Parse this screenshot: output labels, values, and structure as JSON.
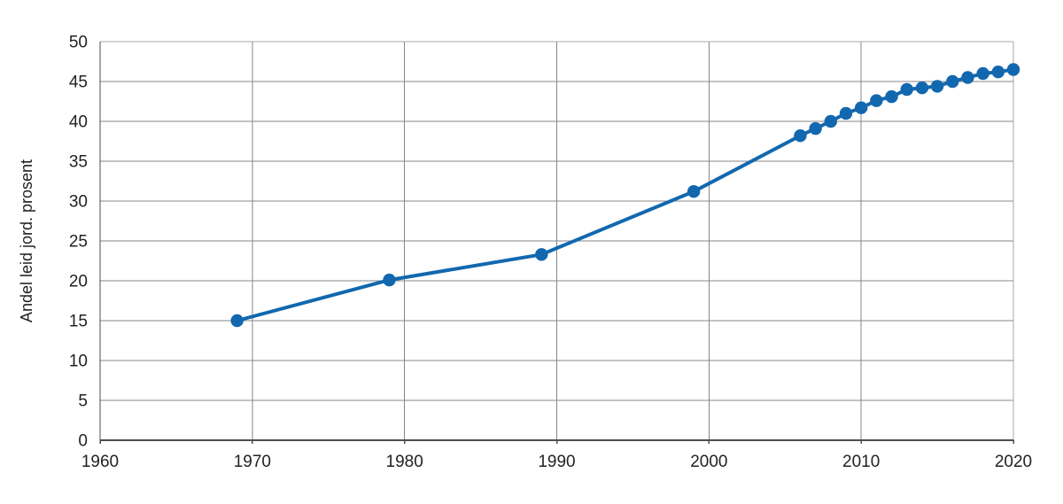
{
  "page": {
    "background": "#ffffff"
  },
  "chart_data": {
    "type": "line",
    "title": "",
    "xlabel": "",
    "ylabel": "Andel leid jord. prosent",
    "series": [
      {
        "name": "Andel leid jord",
        "x": [
          1969,
          1979,
          1989,
          1999,
          2006,
          2007,
          2008,
          2009,
          2010,
          2011,
          2012,
          2013,
          2014,
          2015,
          2016,
          2017,
          2018,
          2019,
          2020
        ],
        "values": [
          15.0,
          20.1,
          23.3,
          31.2,
          38.2,
          39.1,
          40.0,
          41.0,
          41.7,
          42.6,
          43.1,
          44.0,
          44.2,
          44.4,
          45.0,
          45.5,
          46.0,
          46.2,
          46.5
        ]
      }
    ],
    "xlim": [
      1960,
      2020
    ],
    "ylim": [
      0,
      50
    ],
    "x_ticks": [
      1960,
      1970,
      1980,
      1990,
      2000,
      2010,
      2020
    ],
    "y_ticks": [
      0,
      5,
      10,
      15,
      20,
      25,
      30,
      35,
      40,
      45,
      50
    ],
    "grid": true,
    "legend_position": "none",
    "marker": "circle",
    "colors": {
      "line": "#1268ae",
      "marker": "#1268ae",
      "grid": "#878787",
      "frame_light": "#a8a8a8",
      "axis_dark": "#4d4d4d",
      "text": "#222222",
      "background": "#ffffff"
    }
  }
}
